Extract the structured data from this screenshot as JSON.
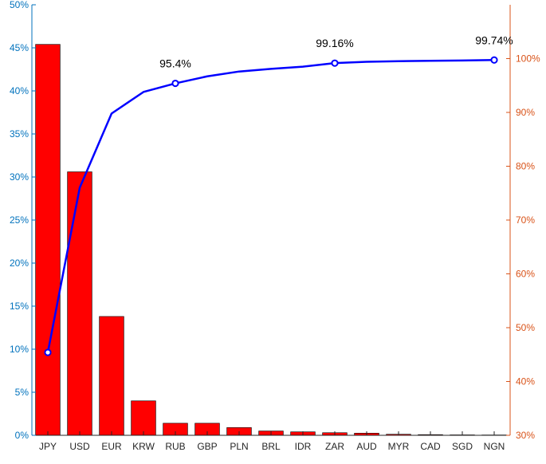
{
  "chart_data": {
    "type": "bar",
    "title": "",
    "xlabel": "",
    "ylabel": "",
    "categories": [
      "JPY",
      "USD",
      "EUR",
      "KRW",
      "RUB",
      "GBP",
      "PLN",
      "BRL",
      "IDR",
      "ZAR",
      "AUD",
      "MYR",
      "CAD",
      "SGD",
      "NGN"
    ],
    "series": [
      {
        "type": "bar",
        "axis": "left",
        "color": "#FF0000",
        "values": [
          45.4,
          30.6,
          13.8,
          4.0,
          1.4,
          1.4,
          0.9,
          0.5,
          0.4,
          0.3,
          0.25,
          0.12,
          0.08,
          0.05,
          0.04
        ]
      },
      {
        "type": "line",
        "axis": "right",
        "color": "#0000FF",
        "values": [
          45.4,
          76.0,
          89.8,
          93.8,
          95.4,
          96.7,
          97.6,
          98.1,
          98.5,
          99.16,
          99.4,
          99.52,
          99.6,
          99.65,
          99.74
        ]
      }
    ],
    "markers": [
      {
        "category": "JPY",
        "value": 45.4
      },
      {
        "category": "RUB",
        "value": 95.4
      },
      {
        "category": "ZAR",
        "value": 99.16
      },
      {
        "category": "NGN",
        "value": 99.74
      }
    ],
    "annotations": [
      {
        "category": "RUB",
        "value": 95.4,
        "text": "95.4%"
      },
      {
        "category": "ZAR",
        "value": 99.16,
        "text": "99.16%"
      },
      {
        "category": "NGN",
        "value": 99.74,
        "text": "99.74%"
      }
    ],
    "y_left": {
      "range": [
        0,
        50
      ],
      "ticks": [
        0,
        5,
        10,
        15,
        20,
        25,
        30,
        35,
        40,
        45,
        50
      ],
      "tick_labels": [
        "0%",
        "5%",
        "10%",
        "15%",
        "20%",
        "25%",
        "30%",
        "35%",
        "40%",
        "45%",
        "50%"
      ],
      "color": "#0072BD"
    },
    "y_right": {
      "range": [
        30,
        110
      ],
      "ticks": [
        30,
        40,
        50,
        60,
        70,
        80,
        90,
        100
      ],
      "tick_labels": [
        "30%",
        "40%",
        "50%",
        "60%",
        "70%",
        "80%",
        "90%",
        "100%"
      ],
      "color": "#D95319"
    },
    "grid": false,
    "legend": "none"
  }
}
